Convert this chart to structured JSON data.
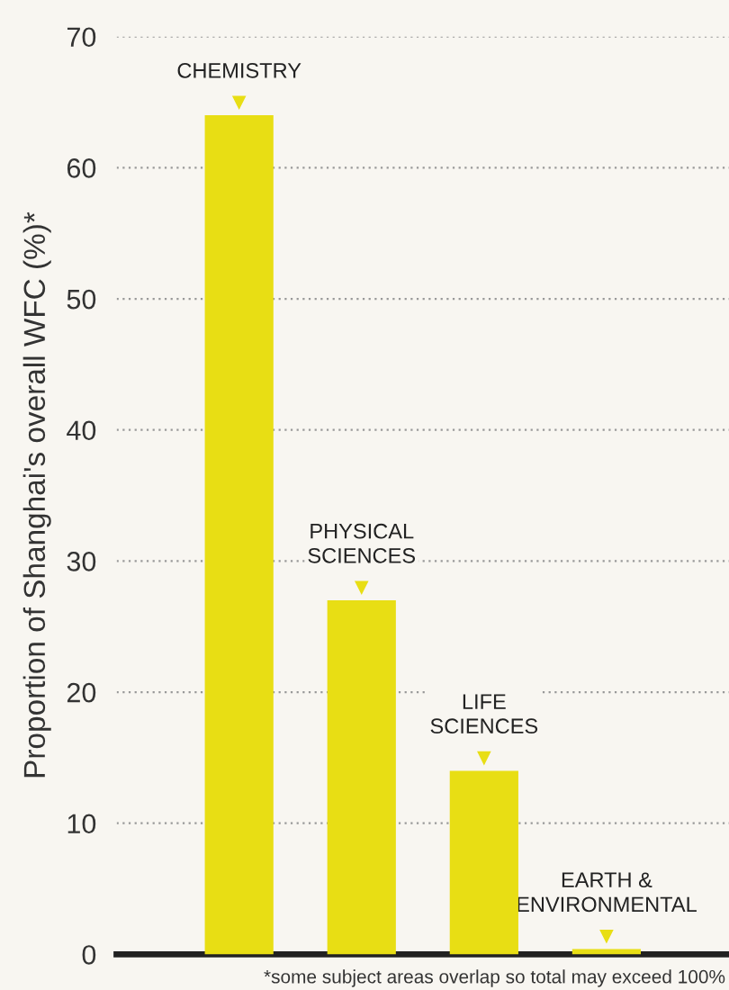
{
  "chart_data": {
    "type": "bar",
    "ylabel": "Proportion of Shanghai's overall WFC (%)*",
    "categories": [
      "CHEMISTRY",
      "PHYSICAL\nSCIENCES",
      "LIFE\nSCIENCES",
      "EARTH &\nENVIRONMENTAL"
    ],
    "values": [
      64,
      27,
      14,
      0.4
    ],
    "color": "#e8de14",
    "ylim": [
      0,
      70
    ],
    "yticks": [
      0,
      10,
      20,
      30,
      40,
      50,
      60,
      70
    ],
    "grid": "y",
    "annotations": [
      "*some subject areas overlap so total may exceed 100%"
    ]
  }
}
